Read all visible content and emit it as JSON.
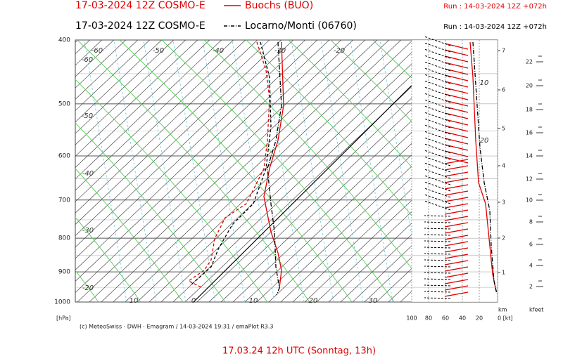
{
  "header": {
    "series": [
      {
        "model": "17-03-2024 12Z COSMO-E",
        "station": "Buochs (BUO)",
        "run": "Run : 14-03-2024 12Z +072h",
        "color": "#e00000"
      },
      {
        "model": "17-03-2024 12Z COSMO-E",
        "station": "Locarno/Monti (06760)",
        "run": "Run : 14-03-2024 12Z +072h",
        "color": "#000000"
      }
    ]
  },
  "pressure_axis": {
    "unit": "[hPa]",
    "ticks": [
      "400",
      "500",
      "600",
      "700",
      "800",
      "900",
      "1000"
    ]
  },
  "temperature_labels": {
    "top": [
      "-60",
      "-50",
      "-40",
      "-30",
      "-20"
    ],
    "left": [
      "-60",
      "-50",
      "-40",
      "-30",
      "-20"
    ],
    "bottom": [
      "10",
      "0",
      "10",
      "20",
      "30"
    ],
    "right": [
      "10",
      "20"
    ]
  },
  "wind_axis": {
    "ticks": [
      "100",
      "80",
      "60",
      "40",
      "20",
      "0 [kt]"
    ]
  },
  "km_axis": {
    "unit": "km",
    "ticks": [
      "7",
      "6",
      "5",
      "4",
      "3",
      "2",
      "1"
    ]
  },
  "kfeet_axis": {
    "unit": "kfeet",
    "ticks": [
      "22",
      "20",
      "18",
      "16",
      "14",
      "12",
      "10",
      "8",
      "6",
      "4",
      "2"
    ]
  },
  "credit": "(c) MeteoSwiss · DWH · Emagram / 14-03-2024  19:31 / emaPlot R3.3",
  "caption": "17.03.24 12h UTC (Sonntag, 13h)"
}
